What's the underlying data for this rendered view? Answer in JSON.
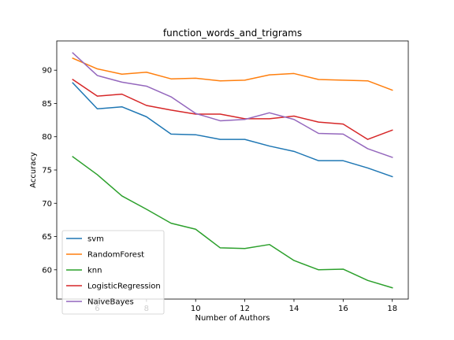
{
  "chart_data": {
    "type": "line",
    "title": "function_words_and_trigrams",
    "xlabel": "Number of Authors",
    "ylabel": "Accuracy",
    "xlim": [
      4.35,
      18.65
    ],
    "ylim": [
      55.6,
      94.4
    ],
    "xticks": [
      6,
      8,
      10,
      12,
      14,
      16,
      18
    ],
    "yticks": [
      60,
      65,
      70,
      75,
      80,
      85,
      90
    ],
    "grid": false,
    "legend_position": "lower-left",
    "x": [
      5,
      6,
      7,
      8,
      9,
      10,
      11,
      12,
      13,
      14,
      15,
      16,
      17,
      18
    ],
    "series": [
      {
        "name": "svm",
        "color": "#1f77b4",
        "values": [
          88.1,
          84.2,
          84.5,
          83.0,
          80.4,
          80.3,
          79.6,
          79.6,
          78.6,
          77.8,
          76.4,
          76.4,
          75.3,
          74.0
        ]
      },
      {
        "name": "RandomForest",
        "color": "#ff7f0e",
        "values": [
          91.8,
          90.2,
          89.4,
          89.7,
          88.7,
          88.8,
          88.4,
          88.5,
          89.3,
          89.5,
          88.6,
          88.5,
          88.4,
          87.0
        ]
      },
      {
        "name": "knn",
        "color": "#2ca02c",
        "values": [
          77.0,
          74.3,
          71.1,
          69.1,
          67.0,
          66.1,
          63.3,
          63.2,
          63.8,
          61.4,
          60.0,
          60.1,
          58.4,
          57.3
        ]
      },
      {
        "name": "LogisticRegression",
        "color": "#d62728",
        "values": [
          88.6,
          86.1,
          86.4,
          84.7,
          84.0,
          83.4,
          83.4,
          82.7,
          82.7,
          83.1,
          82.2,
          81.9,
          79.6,
          81.0
        ]
      },
      {
        "name": "NaiveBayes",
        "color": "#9467bd",
        "values": [
          92.6,
          89.2,
          88.2,
          87.6,
          86.0,
          83.5,
          82.4,
          82.6,
          83.6,
          82.6,
          80.5,
          80.4,
          78.2,
          76.9
        ]
      }
    ]
  }
}
